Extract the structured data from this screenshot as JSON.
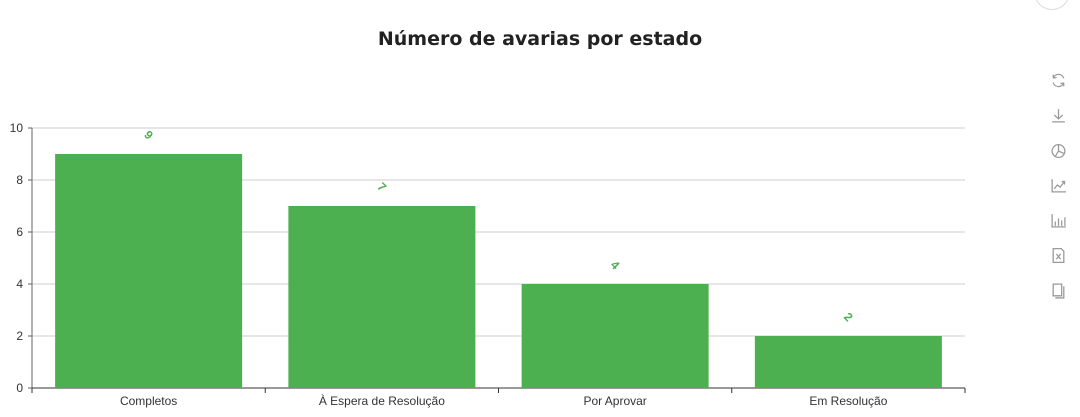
{
  "chart_data": {
    "type": "bar",
    "title": "Número de avarias por estado",
    "categories": [
      "Completos",
      "À Espera de Resolução",
      "Por Aprovar",
      "Em Resolução"
    ],
    "values": [
      9,
      7,
      4,
      2
    ],
    "ylim": [
      0,
      10
    ],
    "yticks": [
      0,
      2,
      4,
      6,
      8,
      10
    ],
    "bar_color": "#4caf50",
    "label_color": "#4caf50",
    "grid": true
  },
  "toolbar": {
    "icons": [
      "refresh-icon",
      "download-icon",
      "pie-chart-icon",
      "line-chart-icon",
      "bar-chart-icon",
      "excel-export-icon",
      "copy-icon"
    ]
  }
}
